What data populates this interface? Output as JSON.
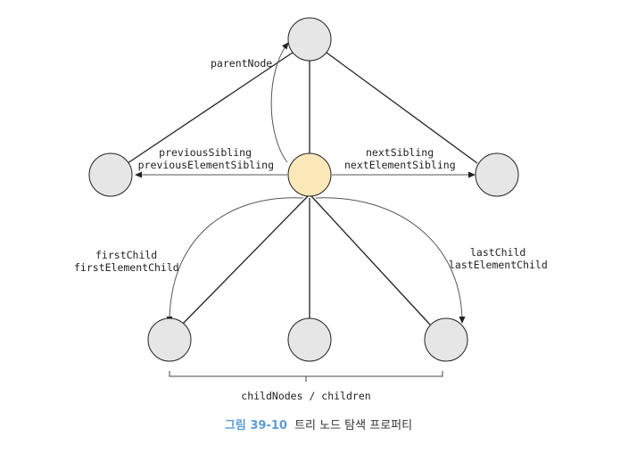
{
  "labels": {
    "parent_node": "parentNode",
    "previous_sibling": "previousSibling",
    "previous_element_sibling": "previousElementSibling",
    "next_sibling": "nextSibling",
    "next_element_sibling": "nextElementSibling",
    "first_child": "firstChild",
    "first_element_child": "firstElementChild",
    "last_child": "lastChild",
    "last_element_child": "lastElementChild",
    "child_nodes": "childNodes / children"
  },
  "caption": {
    "figure": "그림 39-10",
    "title": "트리 노드 탐색 프로퍼티"
  },
  "colors": {
    "node_fill": "#e6e6e6",
    "current_node_fill": "#fbe8b8",
    "stroke": "#222222",
    "caption_accent": "#5b9bd5"
  }
}
